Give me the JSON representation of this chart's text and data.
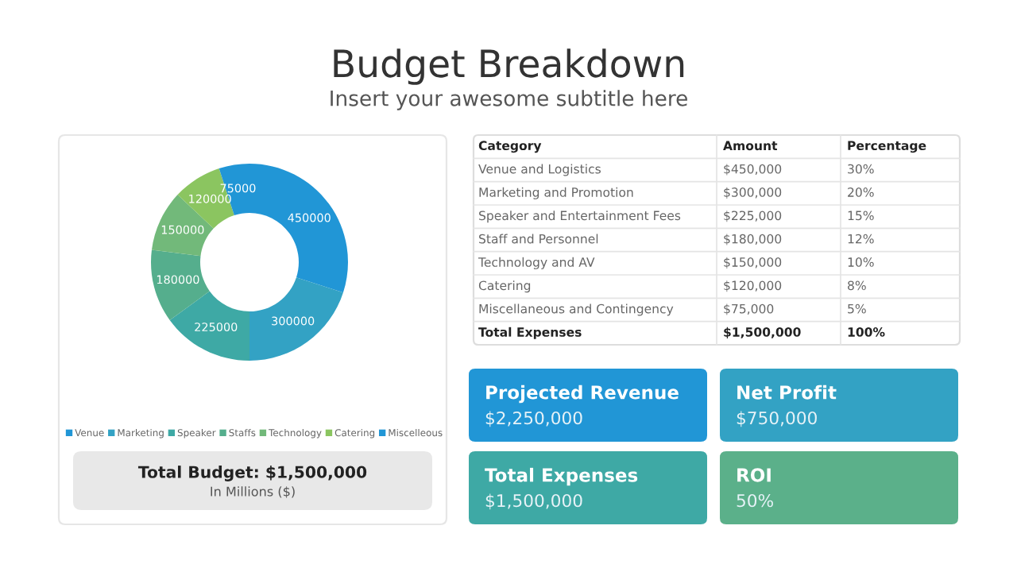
{
  "chart_data": [
    {
      "type": "donut",
      "title": "Budget Breakdown",
      "subtitle": "Insert your awesome subtitle here",
      "categories": [
        "Venue",
        "Marketing",
        "Speaker",
        "Staffs",
        "Technology",
        "Catering",
        "Miscelleous"
      ],
      "values": [
        450000,
        300000,
        225000,
        180000,
        150000,
        120000,
        75000
      ],
      "colors": [
        "#2196d6",
        "#33a2c4",
        "#3ea9a5",
        "#55ae8d",
        "#72b97a",
        "#8bc560",
        "#2196d6"
      ],
      "data_labels": true,
      "legend": "bottom",
      "annotations": [
        "Total Budget: $1,500,000",
        "In Millions ($)"
      ]
    },
    {
      "type": "other",
      "annotations": [
        "Category",
        "Amount",
        "Percentage",
        "Venue and Logistics",
        "$450,000",
        "30%",
        "Marketing and Promotion",
        "$300,000",
        "20%",
        "Speaker and Entertainment Fees",
        "$225,000",
        "15%",
        "Staff and Personnel",
        "$180,000",
        "12%",
        "Technology and AV",
        "$150,000",
        "10%",
        "Catering",
        "$120,000",
        "8%",
        "Miscellaneous and Contingency",
        "$75,000",
        "5%",
        "Total Expenses",
        "$1,500,000",
        "100%"
      ]
    },
    {
      "type": "other",
      "annotations": [
        "Projected Revenue",
        "$2,250,000",
        "Net Profit",
        "$750,000",
        "Total Expenses",
        "$1,500,000",
        "ROI",
        "50%"
      ],
      "colors": [
        "#2196d6",
        "#33a2c4",
        "#3ea9a5",
        "#5bb08a"
      ]
    }
  ]
}
